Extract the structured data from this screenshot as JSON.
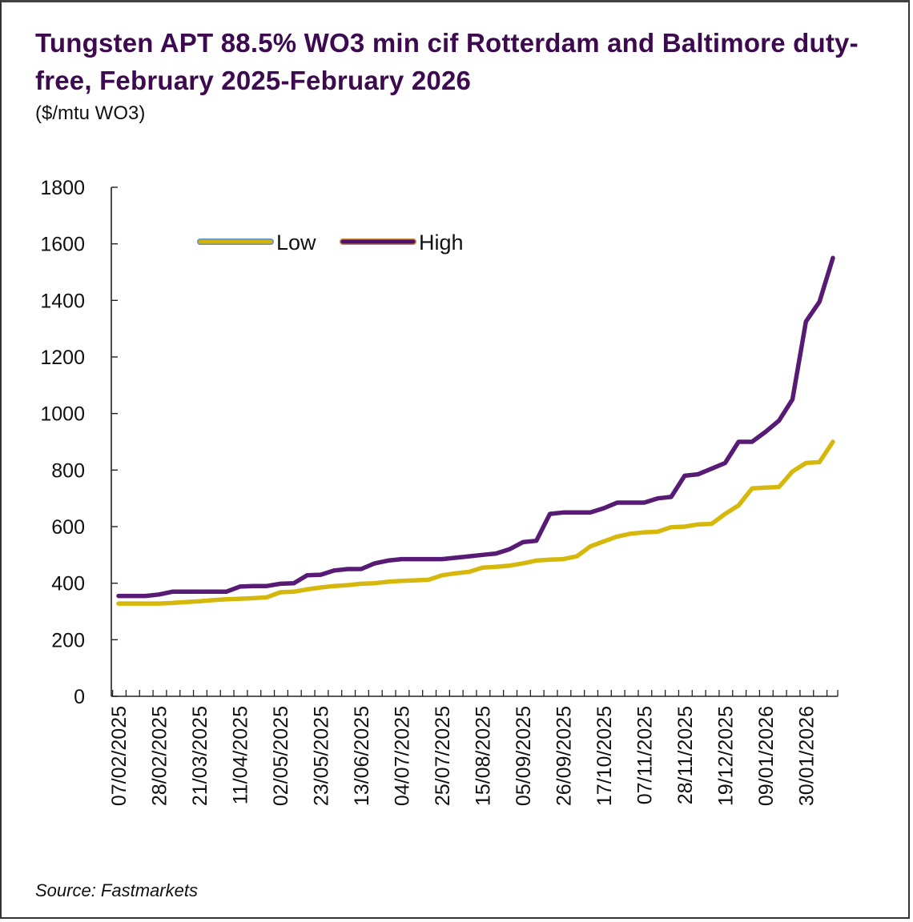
{
  "title": "Tungsten APT 88.5% WO3 min cif Rotterdam and Baltimore duty-free, February 2025-February 2026",
  "units": "($/mtu WO3)",
  "source": "Source: Fastmarkets",
  "chart_data": {
    "type": "line",
    "title": "Tungsten APT 88.5% WO3 min cif Rotterdam and Baltimore duty-free, February 2025-February 2026",
    "subtitle": "($/mtu WO3)",
    "xlabel": "",
    "ylabel": "$/mtu WO3",
    "ylim": [
      0,
      1800
    ],
    "yticks": [
      0,
      200,
      400,
      600,
      800,
      1000,
      1200,
      1400,
      1600,
      1800
    ],
    "grid": false,
    "legend_position": "top-left",
    "x_tick_labels": [
      "07/02/2025",
      "28/02/2025",
      "21/03/2025",
      "11/04/2025",
      "02/05/2025",
      "23/05/2025",
      "13/06/2025",
      "04/07/2025",
      "25/07/2025",
      "15/08/2025",
      "05/09/2025",
      "26/09/2025",
      "17/10/2025",
      "07/11/2025",
      "28/11/2025",
      "19/12/2025",
      "09/01/2026",
      "30/01/2026"
    ],
    "x_tick_label_every": 3,
    "point_count": 54,
    "series": [
      {
        "name": "Low",
        "color": "#d4b400",
        "legend_border": "#5b8fd9",
        "values": [
          328,
          328,
          328,
          328,
          330,
          333,
          336,
          340,
          343,
          345,
          347,
          350,
          368,
          370,
          378,
          385,
          390,
          393,
          398,
          400,
          405,
          408,
          410,
          412,
          428,
          435,
          440,
          455,
          458,
          462,
          470,
          480,
          483,
          485,
          495,
          530,
          548,
          565,
          575,
          580,
          582,
          598,
          600,
          608,
          610,
          645,
          675,
          735,
          738,
          740,
          795,
          825,
          828,
          900
        ]
      },
      {
        "name": "High",
        "color": "#4e0f6e",
        "legend_border": "#c98a3a",
        "values": [
          355,
          355,
          355,
          360,
          370,
          370,
          370,
          370,
          370,
          388,
          390,
          390,
          398,
          400,
          428,
          430,
          445,
          450,
          450,
          470,
          480,
          485,
          485,
          485,
          485,
          490,
          495,
          500,
          505,
          520,
          545,
          550,
          645,
          650,
          650,
          650,
          665,
          685,
          685,
          685,
          700,
          705,
          780,
          785,
          805,
          825,
          900,
          900,
          935,
          975,
          1050,
          1325,
          1395,
          1550
        ]
      }
    ]
  }
}
